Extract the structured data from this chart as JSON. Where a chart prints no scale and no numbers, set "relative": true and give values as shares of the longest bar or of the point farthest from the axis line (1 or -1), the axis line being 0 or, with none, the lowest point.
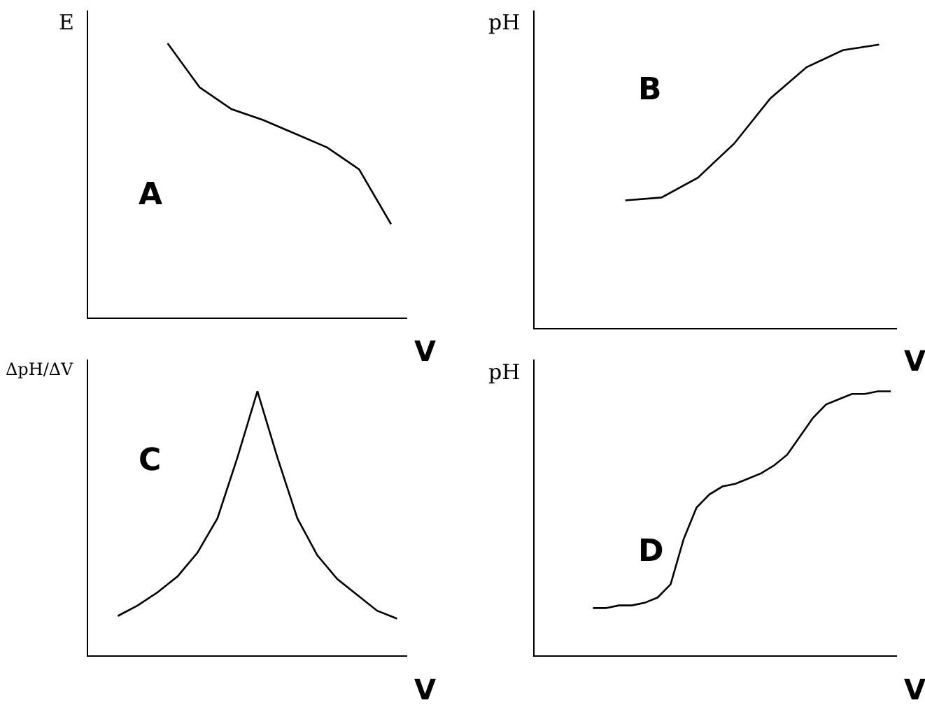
{
  "chart_data": [
    {
      "type": "line",
      "relative": true,
      "xlabel": "V",
      "ylabel": "E",
      "annotations": [
        "A"
      ],
      "color": "#000000",
      "marker": "none",
      "line_style": "solid",
      "categories": [
        null,
        null,
        null,
        null,
        null,
        null,
        null,
        null,
        null,
        null
      ],
      "values": [
        null,
        null,
        1,
        0.84,
        0.76,
        0.72,
        0.67,
        0.62,
        0.54,
        0.34
      ]
    },
    {
      "type": "line",
      "relative": true,
      "xlabel": "V",
      "ylabel": "pH",
      "annotations": [
        "B"
      ],
      "color": "#000000",
      "marker": "none",
      "line_style": "solid",
      "categories": [
        null,
        null,
        null,
        null,
        null,
        null,
        null,
        null,
        null,
        null
      ],
      "values": [
        null,
        null,
        0.45,
        0.46,
        0.53,
        0.65,
        0.81,
        0.92,
        0.98,
        1
      ]
    },
    {
      "type": "line",
      "relative": true,
      "xlabel": "V",
      "ylabel": "ΔpH/ΔV",
      "annotations": [
        "C"
      ],
      "color": "#000000",
      "marker": "none",
      "line_style": "solid",
      "categories": [
        null,
        null,
        null,
        null,
        null,
        null,
        null,
        null,
        null,
        null,
        null,
        null,
        null,
        null,
        null,
        null
      ],
      "values": [
        null,
        0.15,
        0.19,
        0.24,
        0.3,
        0.39,
        0.52,
        0.75,
        1,
        0.75,
        0.52,
        0.38,
        0.29,
        0.23,
        0.17,
        0.14
      ]
    },
    {
      "type": "line",
      "relative": true,
      "xlabel": "V",
      "ylabel": "pH",
      "annotations": [
        "D"
      ],
      "color": "#000000",
      "marker": "none",
      "line_style": "solid",
      "categories": [
        null,
        null,
        null,
        null,
        null,
        null,
        null,
        null,
        null,
        null,
        null,
        null,
        null,
        null,
        null,
        null,
        null,
        null,
        null,
        null,
        null,
        null,
        null,
        null,
        null,
        null,
        null,
        null
      ],
      "values": [
        null,
        null,
        null,
        null,
        0.18,
        0.18,
        0.19,
        0.19,
        0.2,
        0.22,
        0.27,
        0.44,
        0.56,
        0.61,
        0.64,
        0.65,
        0.67,
        0.69,
        0.72,
        0.76,
        0.83,
        0.9,
        0.95,
        0.97,
        0.99,
        0.99,
        1,
        1
      ]
    }
  ]
}
